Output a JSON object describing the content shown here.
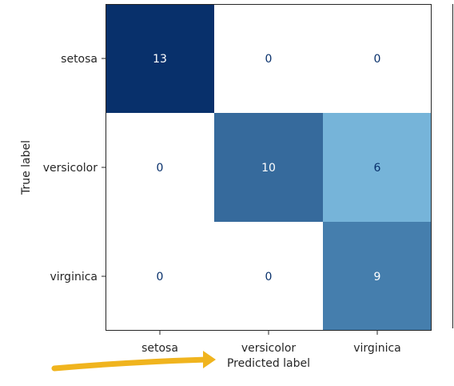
{
  "chart_data": {
    "type": "heatmap",
    "title": "",
    "xlabel": "Predicted label",
    "ylabel": "True label",
    "x_categories": [
      "setosa",
      "versicolor",
      "virginica"
    ],
    "y_categories": [
      "setosa",
      "versicolor",
      "virginica"
    ],
    "values": [
      [
        13,
        0,
        0
      ],
      [
        0,
        10,
        6
      ],
      [
        0,
        0,
        9
      ]
    ],
    "colormap": "Blues",
    "color_range": [
      0,
      13
    ],
    "colorbar_visible": true,
    "grid": false
  },
  "colors": {
    "low": "#ffffff",
    "mid": "#6baed6",
    "high": "#08306b",
    "text_on_dark": "#ffffff",
    "text_on_light": "#08306b",
    "annotation_arrow": "#f0b41e"
  }
}
